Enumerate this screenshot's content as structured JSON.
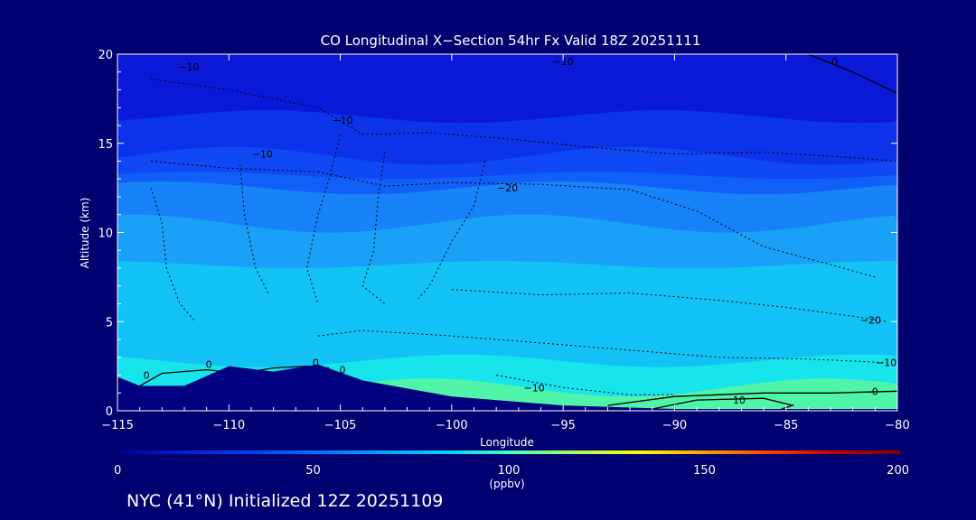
{
  "chart_data": {
    "type": "contour",
    "title": "CO Longitudinal X−Section 54hr  Fx Valid 18Z 20251111",
    "xlabel": "Longitude",
    "ylabel": "Altitude (km)",
    "xlim": [
      -115,
      -80
    ],
    "ylim": [
      0,
      20
    ],
    "x_ticks": [
      -115,
      -110,
      -105,
      -100,
      -95,
      -90,
      -85,
      -80
    ],
    "x_tick_labels": [
      "−115",
      "−110",
      "−105",
      "−100",
      "−95",
      "−90",
      "−85",
      "−80"
    ],
    "y_ticks": [
      0,
      5,
      10,
      15,
      20
    ],
    "y_tick_labels": [
      "0",
      "5",
      "10",
      "15",
      "20"
    ],
    "colorbar": {
      "min": 0,
      "max": 200,
      "ticks": [
        0,
        50,
        100,
        150,
        200
      ],
      "tick_labels": [
        "0",
        "50",
        "100",
        "150",
        "200"
      ],
      "unit": "(ppbv)",
      "colors": [
        "#000090",
        "#0020d0",
        "#0040f0",
        "#0070ff",
        "#00a0ff",
        "#00d0ff",
        "#40ffc0",
        "#a0ff60",
        "#ffff00",
        "#ffa000",
        "#ff4000",
        "#c00000",
        "#800000"
      ]
    },
    "fill_levels": [
      {
        "upper_km": 20,
        "ppbv": 20,
        "color": "#0a18d8"
      },
      {
        "upper_km": 16.5,
        "ppbv": 30,
        "color": "#0c32ea"
      },
      {
        "upper_km": 14.3,
        "ppbv": 40,
        "color": "#1048f4"
      },
      {
        "upper_km": 13.2,
        "ppbv": 50,
        "color": "#1060f8"
      },
      {
        "upper_km": 12.5,
        "ppbv": 60,
        "color": "#1882f8"
      },
      {
        "upper_km": 10.5,
        "ppbv": 70,
        "color": "#1aa0f6"
      },
      {
        "upper_km": 8.2,
        "ppbv": 80,
        "color": "#12c2f4"
      },
      {
        "upper_km": 2.8,
        "ppbv": 90,
        "color": "#18e4ec"
      },
      {
        "upper_km": 1.3,
        "ppbv": 100,
        "color": "#50f4a8"
      }
    ],
    "terrain_km": [
      {
        "lon": -115,
        "alt": 1.9
      },
      {
        "lon": -114,
        "alt": 1.4
      },
      {
        "lon": -112,
        "alt": 1.4
      },
      {
        "lon": -110,
        "alt": 2.5
      },
      {
        "lon": -108,
        "alt": 2.2
      },
      {
        "lon": -106,
        "alt": 2.6
      },
      {
        "lon": -104,
        "alt": 1.7
      },
      {
        "lon": -100,
        "alt": 0.8
      },
      {
        "lon": -95,
        "alt": 0.3
      },
      {
        "lon": -90,
        "alt": 0.1
      },
      {
        "lon": -80,
        "alt": 0.1
      }
    ],
    "contour_labels": [
      {
        "text": "−10",
        "lon": -111.8,
        "alt": 19.3
      },
      {
        "text": "−10",
        "lon": -95,
        "alt": 19.6
      },
      {
        "text": "−0",
        "lon": -83,
        "alt": 19.6
      },
      {
        "text": "−10",
        "lon": -104.9,
        "alt": 16.3
      },
      {
        "text": "−10",
        "lon": -108.5,
        "alt": 14.4
      },
      {
        "text": "−20",
        "lon": -97.5,
        "alt": 12.5
      },
      {
        "text": "−20",
        "lon": -81.2,
        "alt": 5.1
      },
      {
        "text": "−10",
        "lon": -80.5,
        "alt": 2.7
      },
      {
        "text": "0",
        "lon": -110.9,
        "alt": 2.6
      },
      {
        "text": "0",
        "lon": -106.1,
        "alt": 2.7
      },
      {
        "text": "0",
        "lon": -104.9,
        "alt": 2.3
      },
      {
        "text": "0",
        "lon": -113.7,
        "alt": 2.0
      },
      {
        "text": "−10",
        "lon": -96.3,
        "alt": 1.3
      },
      {
        "text": "0",
        "lon": -81,
        "alt": 1.1
      },
      {
        "text": "10",
        "lon": -87.1,
        "alt": 0.6
      }
    ]
  },
  "footer": {
    "location": "NYC (41°N) Initialized 12Z 20251109"
  }
}
